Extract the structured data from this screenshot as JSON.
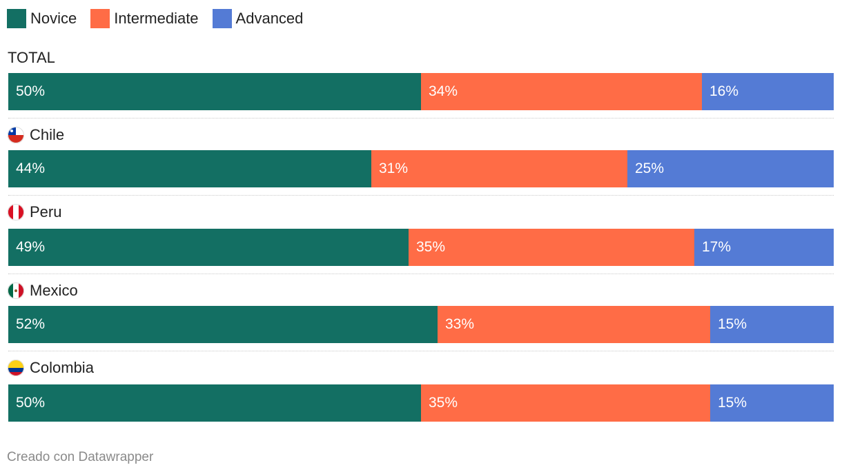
{
  "legend": [
    {
      "label": "Novice",
      "color": "#136f63"
    },
    {
      "label": "Intermediate",
      "color": "#ff6c46"
    },
    {
      "label": "Advanced",
      "color": "#547bd5"
    }
  ],
  "chart_data": {
    "type": "bar",
    "orientation": "horizontal",
    "stacked": true,
    "normalized": true,
    "legend_position": "top-left",
    "categories": [
      "TOTAL",
      "Chile",
      "Peru",
      "Mexico",
      "Colombia"
    ],
    "series": [
      {
        "name": "Novice",
        "color": "#136f63",
        "values": [
          50,
          44,
          49,
          52,
          50
        ],
        "labels": [
          "50%",
          "44%",
          "49%",
          "52%",
          "50%"
        ]
      },
      {
        "name": "Intermediate",
        "color": "#ff6c46",
        "values": [
          34,
          31,
          35,
          33,
          35
        ],
        "labels": [
          "34%",
          "31%",
          "35%",
          "33%",
          "35%"
        ]
      },
      {
        "name": "Advanced",
        "color": "#547bd5",
        "values": [
          16,
          25,
          17,
          15,
          15
        ],
        "labels": [
          "16%",
          "25%",
          "17%",
          "15%",
          "15%"
        ]
      }
    ],
    "flags": [
      "",
      "chile-flag-icon",
      "peru-flag-icon",
      "mexico-flag-icon",
      "colombia-flag-icon"
    ]
  },
  "footer": "Creado con Datawrapper"
}
